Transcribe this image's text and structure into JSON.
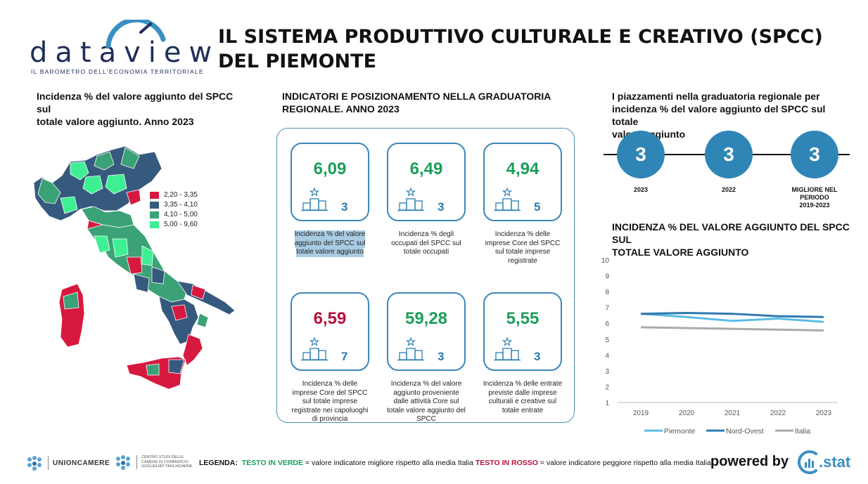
{
  "header": {
    "logo_text": "dataview",
    "logo_tagline": "IL BAROMETRO DELL'ECONOMIA TERRITORIALE",
    "title_line1": "IL SISTEMA PRODUTTIVO CULTURALE E CREATIVO (SPCC)",
    "title_line2": "DEL PIEMONTE"
  },
  "map": {
    "title_line1": "Incidenza % del valore aggiunto del SPCC sul",
    "title_line2": "totale valore aggiunto. Anno 2023",
    "legend": [
      {
        "label": "2,20 - 3,35",
        "color": "#d7193f"
      },
      {
        "label": "3,35 - 4,10",
        "color": "#365a7e"
      },
      {
        "label": "4,10 - 5,00",
        "color": "#3aa276"
      },
      {
        "label": "5,00 - 9,60",
        "color": "#3ef093"
      }
    ]
  },
  "indicators": {
    "title_line1": "INDICATORI E POSIZIONAMENTO NELLA GRADUATORIA",
    "title_line2": "REGIONALE. ANNO 2023",
    "cards": [
      {
        "value": "6,09",
        "rank": "3",
        "status": "green",
        "desc": [
          "Incidenza % del valore",
          "aggiunto del SPCC sul",
          "totale valore aggiunto"
        ]
      },
      {
        "value": "6,49",
        "rank": "3",
        "status": "green",
        "desc": [
          "Incidenza % degli",
          "occupati del SPCC sul",
          "totale occupati"
        ]
      },
      {
        "value": "4,94",
        "rank": "5",
        "status": "green",
        "desc": [
          "Incidenza % delle",
          "imprese Core del SPCC",
          "sul totale imprese",
          "registrate"
        ]
      },
      {
        "value": "6,59",
        "rank": "7",
        "status": "red",
        "desc": [
          "Incidenza % delle",
          "imprese Core del SPCC",
          "sul totale imprese",
          "registrate nei capoluoghi",
          "di provincia"
        ]
      },
      {
        "value": "59,28",
        "rank": "3",
        "status": "green",
        "desc": [
          "Incidenza % del valore",
          "aggiunto proveniente",
          "dalle attività Core sul",
          "totale valore aggiunto del",
          "SPCC"
        ]
      },
      {
        "value": "5,55",
        "rank": "3",
        "status": "green",
        "desc": [
          "Incidenza % delle entrate",
          "previste dalle imprese",
          "culturali e creative sul",
          "totale entrate"
        ]
      }
    ]
  },
  "ranking": {
    "title_line1": "I piazzamenti nella graduatoria regionale per",
    "title_line2": "incidenza % del valore aggiunto del SPCC sul totale",
    "title_line3": "valore aggiunto",
    "items": [
      {
        "value": "3",
        "label": [
          "2023"
        ]
      },
      {
        "value": "3",
        "label": [
          "2022"
        ]
      },
      {
        "value": "3",
        "label": [
          "MIGLIORE NEL",
          "PERIODO",
          "2019-2023"
        ]
      }
    ]
  },
  "chart_data": {
    "type": "line",
    "title": "INCIDENZA % DEL VALORE AGGIUNTO DEL SPCC SUL TOTALE VALORE AGGIUNTO",
    "x": [
      "2019",
      "2020",
      "2021",
      "2022",
      "2023"
    ],
    "ylim": [
      1,
      10
    ],
    "yticks": [
      1,
      2,
      3,
      4,
      5,
      6,
      7,
      8,
      9,
      10
    ],
    "grid": false,
    "legend_position": "bottom",
    "series": [
      {
        "name": "Piemonte",
        "color": "#5bbde6",
        "values": [
          6.6,
          6.4,
          6.15,
          6.3,
          6.09
        ]
      },
      {
        "name": "Nord-Ovest",
        "color": "#2f7ab0",
        "values": [
          6.6,
          6.65,
          6.6,
          6.45,
          6.4
        ]
      },
      {
        "name": "Italia",
        "color": "#aaaaaa",
        "values": [
          5.75,
          5.7,
          5.65,
          5.6,
          5.55
        ]
      }
    ]
  },
  "footer": {
    "logo1": "UNIONCAMERE",
    "logo2_lines": [
      "CENTRO STUDI DELLE",
      "CAMERE DI COMMERCIO",
      "GUGLIELMO TAGLIACARNE"
    ],
    "legend_label": "LEGENDA:",
    "legend_green": "TESTO IN VERDE",
    "legend_green_desc": " = valore indicatore migliore rispetto alla media Italia ",
    "legend_red": "TESTO IN ROSSO",
    "legend_red_desc": " = valore indicatore peggiore rispetto alla media Italia",
    "powered_by": "powered by",
    "brand": ".stat"
  }
}
